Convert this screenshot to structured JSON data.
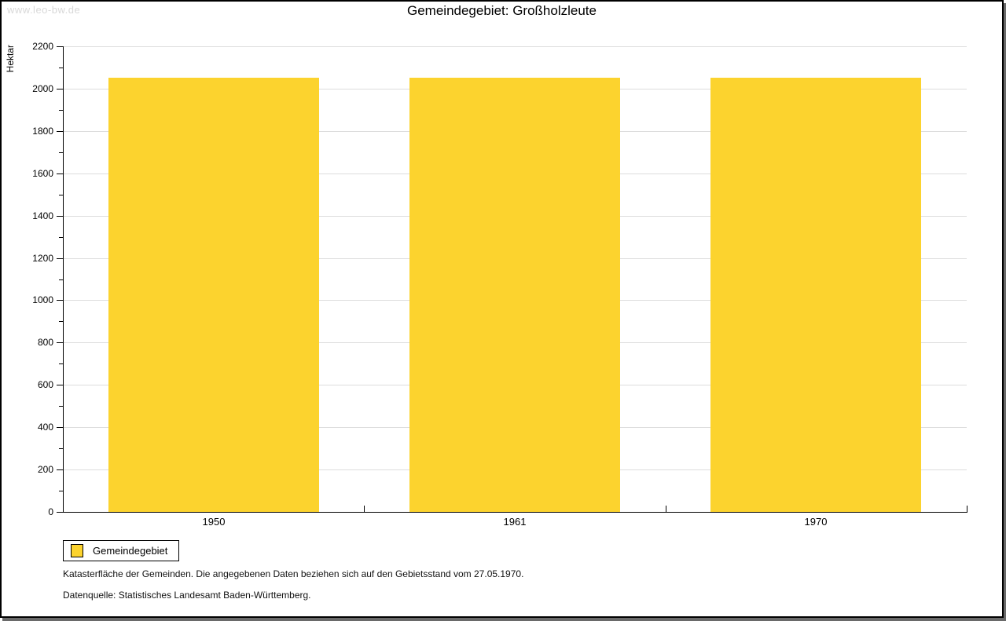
{
  "watermark": "www.leo-bw.de",
  "chart_data": {
    "type": "bar",
    "title": "Gemeindegebiet: Großholzleute",
    "ylabel": "Hektar",
    "xlabel": "",
    "categories": [
      "1950",
      "1961",
      "1970"
    ],
    "series": [
      {
        "name": "Gemeindegebiet",
        "values": [
          2053,
          2053,
          2053
        ]
      }
    ],
    "ylim": [
      0,
      2200
    ],
    "ytick_step": 200,
    "yminor_step": 100,
    "grid": true,
    "legend_position": "bottom-left"
  },
  "legend": {
    "items": [
      {
        "label": "Gemeindegebiet",
        "color": "#fcd32e"
      }
    ]
  },
  "notes": [
    "Katasterfläche der Gemeinden. Die angegebenen Daten beziehen sich auf den Gebietsstand vom 27.05.1970.",
    "Datenquelle: Statistisches Landesamt Baden-Württemberg."
  ],
  "colors": {
    "bar": "#fcd32e",
    "grid": "#dddddd",
    "axis": "#000000",
    "watermark": "#d8d8d8",
    "shadow": "#6a6a6a"
  }
}
